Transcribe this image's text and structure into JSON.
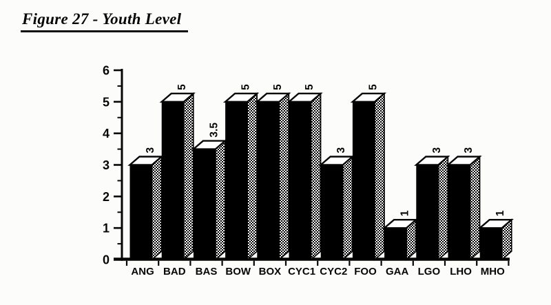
{
  "figure_title": "Figure 27 - Youth Level",
  "chart_data": {
    "type": "bar",
    "title": "Figure 27 - Youth Level",
    "categories": [
      "ANG",
      "BAD",
      "BAS",
      "BOW",
      "BOX",
      "CYC1",
      "CYC2",
      "FOO",
      "GAA",
      "LGO",
      "LHO",
      "MHO"
    ],
    "values": [
      3,
      5,
      3.5,
      5,
      5,
      5,
      3,
      5,
      1,
      3,
      3,
      1
    ],
    "value_labels": [
      "3",
      "5",
      "3.5",
      "5",
      "5",
      "5",
      "3",
      "5",
      "1",
      "3",
      "3",
      "1"
    ],
    "xlabel": "",
    "ylabel": "",
    "ylim": [
      0,
      6
    ],
    "y_major_ticks": [
      0,
      1,
      2,
      3,
      4,
      5,
      6
    ],
    "y_minor_step": 0.5,
    "grid": "off",
    "legend": "none",
    "bar_style": "3d-extruded",
    "value_label_rotation_deg": -90,
    "colors": {
      "ink": "#060606",
      "bar_front": "#000000",
      "bar_top": "#ffffff",
      "bar_side": "checker-pattern",
      "paper": "#fcfcfa"
    }
  }
}
